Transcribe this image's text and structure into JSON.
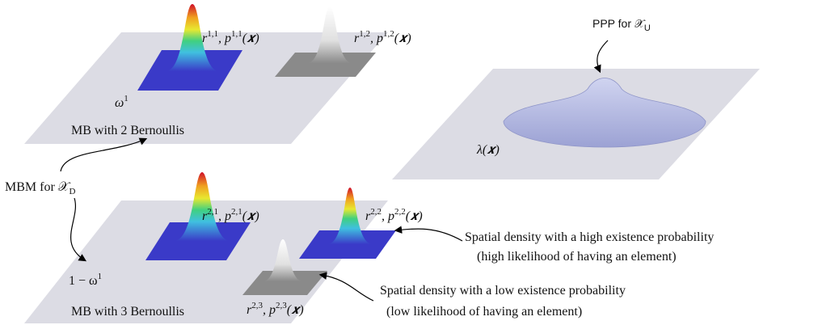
{
  "labels": {
    "r11": [
      "r",
      "1,1",
      ", p",
      "1,1",
      "(𝒙)"
    ],
    "r12": [
      "r",
      "1,2",
      ", p",
      "1,2",
      "(𝒙)"
    ],
    "omega1": [
      "ω",
      "1"
    ],
    "mb2": [
      "MB with 2 Bernoullis"
    ],
    "ppp": [
      "PPP for 𝒳",
      "U"
    ],
    "lambda": [
      "λ(𝒙)"
    ],
    "mbm": [
      "MBM for 𝒳",
      "D"
    ],
    "r21": [
      "r",
      "2,1",
      ", p",
      "2,1",
      "(𝒙)"
    ],
    "r22": [
      "r",
      "2,2",
      ", p",
      "2,2",
      "(𝒙)"
    ],
    "high1": [
      "Spatial density with a high existence probability"
    ],
    "high2": [
      "(high likelihood of having an element)"
    ],
    "omega2": [
      "1 − ω",
      "1"
    ],
    "low1": [
      "Spatial density with a low existence probability"
    ],
    "low2": [
      "(low likelihood of having an element)"
    ],
    "r23": [
      "r",
      "2,3",
      ", p",
      "2,3",
      "(𝒙)"
    ],
    "mb3": [
      "MB with 3 Bernoullis"
    ]
  }
}
